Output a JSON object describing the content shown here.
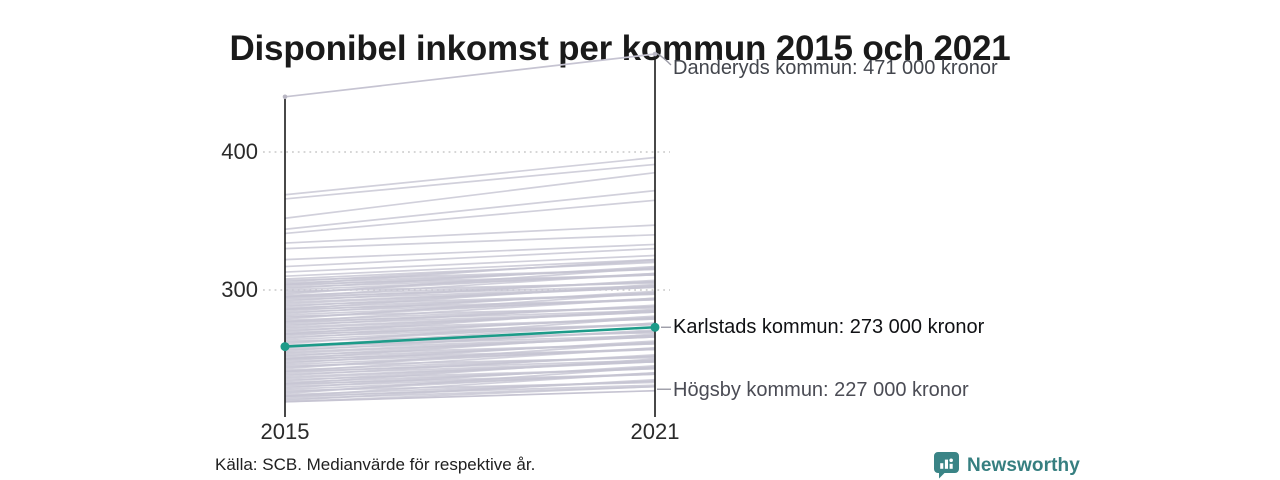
{
  "title": "Disponibel inkomst per kommun 2015 och 2021",
  "source": "Källa: SCB. Medianvärde för respektive år.",
  "logo": {
    "text": "Newsworthy",
    "icon": "newsworthy-chart-bubble-icon",
    "color": "#367f80"
  },
  "axis": {
    "y_labels": [
      "400",
      "300"
    ],
    "x_labels": [
      "2015",
      "2021"
    ]
  },
  "chart_data": {
    "type": "line",
    "subtype": "slopegraph",
    "title": "Disponibel inkomst per kommun 2015 och 2021",
    "x": [
      2015,
      2021
    ],
    "unit": "tusen kronor (medianvärde per kommun)",
    "ylim": [
      210,
      480
    ],
    "yticks": [
      400,
      300
    ],
    "grid": "dotted horizontal lines at yticks",
    "legend": "none",
    "colors": {
      "highlight": "#1d9b89",
      "line": "#c6c4d2",
      "axis": "#1a1a1a",
      "grid": "#c9c9c9",
      "connector": "#9b9ba6",
      "endpoint_dot": "#b9b7c4"
    },
    "series": [
      {
        "name": "Danderyds kommun",
        "values": [
          440,
          471
        ],
        "label": "Danderyds kommun: 471 000 kronor",
        "highlighted": false
      },
      {
        "name": "Karlstads kommun",
        "values": [
          259,
          273
        ],
        "label": "Karlstads kommun: 273 000 kronor",
        "highlighted": true
      },
      {
        "name": "Högsby kommun",
        "values": [
          219,
          227
        ],
        "label": "Högsby kommun: 227 000 kronor",
        "highlighted": false
      }
    ],
    "background_lines": [
      [
        369,
        396
      ],
      [
        366,
        391
      ],
      [
        352,
        385
      ],
      [
        344,
        372
      ],
      [
        341,
        365
      ],
      [
        334,
        347
      ],
      [
        330,
        340
      ],
      [
        322,
        333
      ],
      [
        317,
        330
      ],
      [
        313,
        325
      ],
      [
        310,
        322
      ],
      [
        308,
        320
      ],
      [
        307,
        315
      ],
      [
        306,
        321
      ],
      [
        305,
        315
      ],
      [
        304,
        322
      ],
      [
        304,
        311
      ],
      [
        303,
        316
      ],
      [
        302,
        311
      ],
      [
        301,
        317
      ],
      [
        300,
        311
      ],
      [
        299,
        305
      ],
      [
        298,
        312
      ],
      [
        297,
        316
      ],
      [
        296,
        306
      ],
      [
        295,
        303
      ],
      [
        295,
        312
      ],
      [
        294,
        306
      ],
      [
        293,
        302
      ],
      [
        292,
        307
      ],
      [
        291,
        302
      ],
      [
        290,
        302
      ],
      [
        289,
        297
      ],
      [
        288,
        303
      ],
      [
        287,
        297
      ],
      [
        286,
        304
      ],
      [
        286,
        293
      ],
      [
        285,
        298
      ],
      [
        284,
        293
      ],
      [
        283,
        299
      ],
      [
        282,
        293
      ],
      [
        281,
        287
      ],
      [
        280,
        294
      ],
      [
        279,
        298
      ],
      [
        278,
        288
      ],
      [
        277,
        285
      ],
      [
        277,
        294
      ],
      [
        276,
        288
      ],
      [
        275,
        284
      ],
      [
        274,
        289
      ],
      [
        273,
        284
      ],
      [
        272,
        284
      ],
      [
        271,
        279
      ],
      [
        270,
        285
      ],
      [
        269,
        279
      ],
      [
        268,
        286
      ],
      [
        268,
        275
      ],
      [
        267,
        280
      ],
      [
        266,
        275
      ],
      [
        265,
        281
      ],
      [
        264,
        275
      ],
      [
        263,
        269
      ],
      [
        262,
        276
      ],
      [
        261,
        280
      ],
      [
        260,
        270
      ],
      [
        259,
        267
      ],
      [
        259,
        276
      ],
      [
        258,
        270
      ],
      [
        257,
        266
      ],
      [
        256,
        271
      ],
      [
        255,
        266
      ],
      [
        254,
        266
      ],
      [
        253,
        261
      ],
      [
        252,
        267
      ],
      [
        251,
        261
      ],
      [
        250,
        268
      ],
      [
        250,
        257
      ],
      [
        249,
        262
      ],
      [
        248,
        257
      ],
      [
        247,
        263
      ],
      [
        246,
        257
      ],
      [
        245,
        251
      ],
      [
        244,
        258
      ],
      [
        243,
        262
      ],
      [
        242,
        252
      ],
      [
        241,
        249
      ],
      [
        241,
        258
      ],
      [
        240,
        252
      ],
      [
        239,
        248
      ],
      [
        238,
        253
      ],
      [
        237,
        248
      ],
      [
        236,
        248
      ],
      [
        235,
        243
      ],
      [
        234,
        249
      ],
      [
        233,
        243
      ],
      [
        232,
        250
      ],
      [
        232,
        239
      ],
      [
        231,
        244
      ],
      [
        230,
        239
      ],
      [
        229,
        245
      ],
      [
        228,
        239
      ],
      [
        227,
        233
      ],
      [
        226,
        240
      ],
      [
        225,
        244
      ],
      [
        224,
        234
      ],
      [
        223,
        231
      ],
      [
        223,
        240
      ],
      [
        222,
        234
      ],
      [
        221,
        230
      ],
      [
        220,
        235
      ],
      [
        219,
        230
      ]
    ]
  }
}
